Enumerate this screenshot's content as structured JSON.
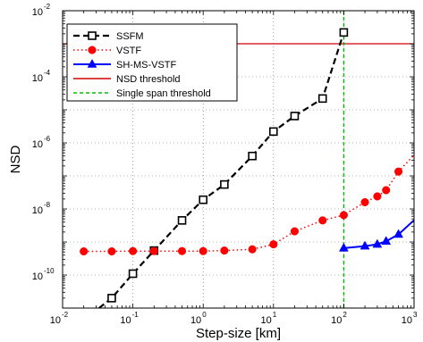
{
  "chart_data": {
    "type": "line",
    "title": "",
    "xlabel": "Step-size [km]",
    "ylabel": "NSD",
    "xscale": "log",
    "yscale": "log",
    "xlim": [
      0.01,
      1000
    ],
    "ylim": [
      1e-11,
      0.01
    ],
    "grid": true,
    "legend_position": "top-left",
    "x_ticks": [
      {
        "base": "10",
        "exp": "-2",
        "value": 0.01
      },
      {
        "base": "10",
        "exp": "-1",
        "value": 0.1
      },
      {
        "base": "10",
        "exp": "0",
        "value": 1
      },
      {
        "base": "10",
        "exp": "1",
        "value": 10
      },
      {
        "base": "10",
        "exp": "2",
        "value": 100
      },
      {
        "base": "10",
        "exp": "3",
        "value": 1000
      }
    ],
    "y_ticks": [
      {
        "base": "10",
        "exp": "-10",
        "value": 1e-10
      },
      {
        "base": "10",
        "exp": "-8",
        "value": 1e-08
      },
      {
        "base": "10",
        "exp": "-6",
        "value": 1e-06
      },
      {
        "base": "10",
        "exp": "-4",
        "value": 0.0001
      },
      {
        "base": "10",
        "exp": "-2",
        "value": 0.01
      }
    ],
    "series": [
      {
        "name": "SSFM",
        "color": "#000000",
        "marker": "square",
        "style": "dashed",
        "points": [
          [
            0.05,
            2e-11
          ],
          [
            0.1,
            1.1e-10
          ],
          [
            0.2,
            5.5e-10
          ],
          [
            0.5,
            4.5e-09
          ],
          [
            1,
            1.9e-08
          ],
          [
            2,
            5.5e-08
          ],
          [
            5,
            4e-07
          ],
          [
            10,
            2.2e-06
          ],
          [
            20,
            6.5e-06
          ],
          [
            50,
            2.2e-05
          ],
          [
            100,
            0.0022
          ]
        ],
        "line_extends_to": [
          0.033,
          1e-11
        ]
      },
      {
        "name": "VSTF",
        "color": "#ff0000",
        "marker": "circle",
        "style": "dotted",
        "points": [
          [
            0.02,
            5.2e-10
          ],
          [
            0.05,
            5.2e-10
          ],
          [
            0.1,
            5.3e-10
          ],
          [
            0.2,
            5.3e-10
          ],
          [
            0.5,
            5.3e-10
          ],
          [
            1,
            5.3e-10
          ],
          [
            2,
            5.5e-10
          ],
          [
            5,
            6e-10
          ],
          [
            10,
            8.5e-10
          ],
          [
            20,
            2.1e-09
          ],
          [
            50,
            4.5e-09
          ],
          [
            100,
            6.5e-09
          ],
          [
            200,
            1.6e-08
          ],
          [
            300,
            2.4e-08
          ],
          [
            400,
            3.7e-08
          ],
          [
            600,
            1.35e-07
          ],
          [
            1200,
            6.5e-07
          ]
        ]
      },
      {
        "name": "SH-MS-VSTF",
        "color": "#0000ff",
        "marker": "triangle",
        "style": "solid",
        "points": [
          [
            100,
            6.5e-10
          ],
          [
            200,
            7.5e-10
          ],
          [
            300,
            8.5e-10
          ],
          [
            400,
            1.05e-09
          ],
          [
            600,
            1.7e-09
          ],
          [
            1200,
            6.5e-09
          ]
        ]
      }
    ],
    "thresholds": [
      {
        "name": "NSD threshold",
        "color": "#d40000",
        "orientation": "horizontal",
        "value": 0.001
      },
      {
        "name": "Single span threshold",
        "color": "#00c000",
        "orientation": "vertical",
        "value": 100
      }
    ]
  }
}
